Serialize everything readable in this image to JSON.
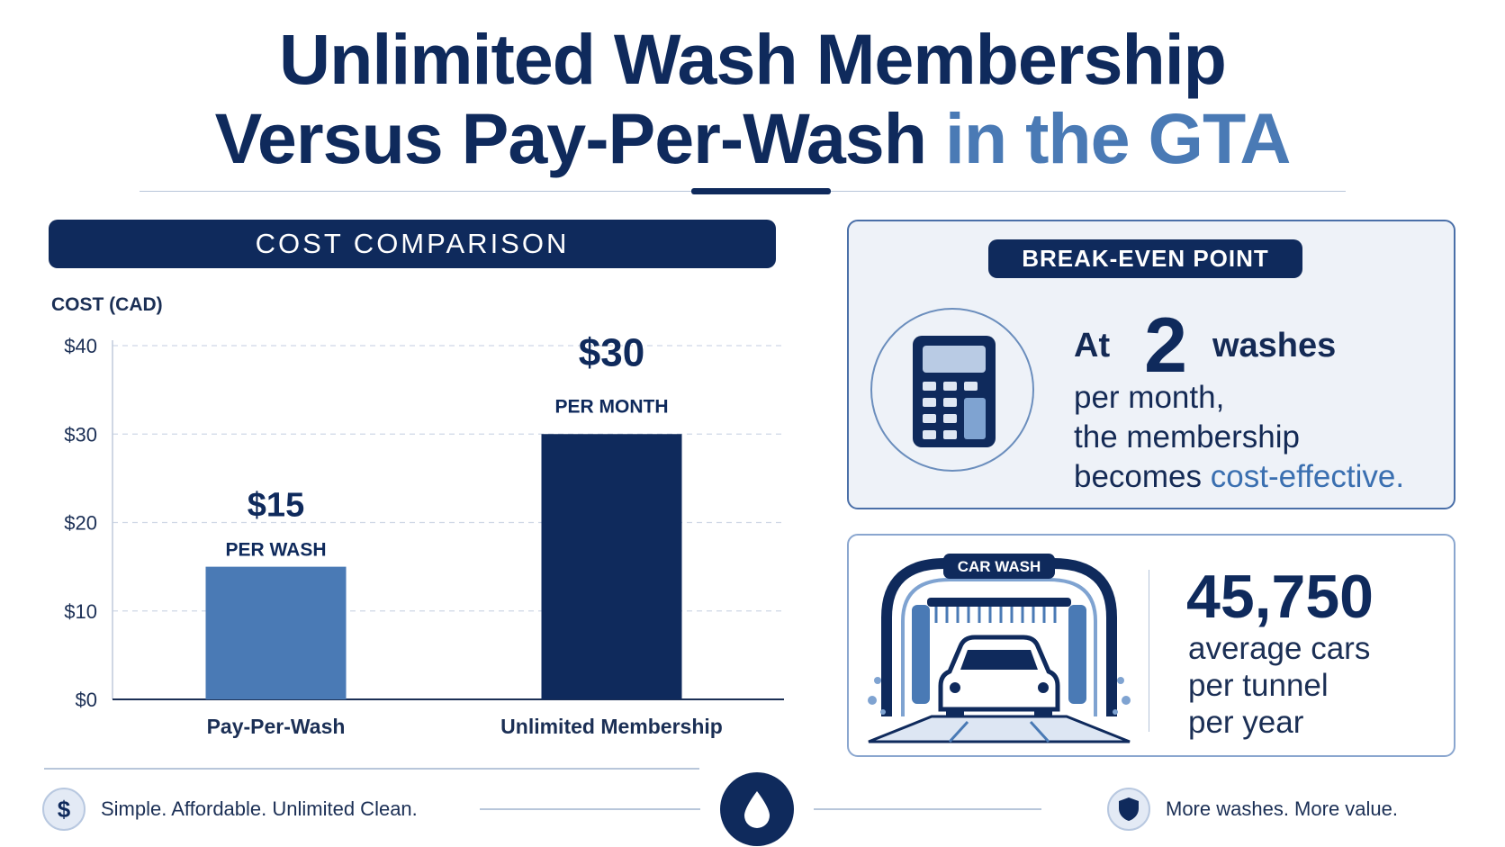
{
  "title": {
    "line1": "Unlimited Wash Membership",
    "line2_main": "Versus Pay-Per-Wash",
    "line2_accent": "in the GTA"
  },
  "cost_panel": {
    "header": "COST COMPARISON"
  },
  "chart_data": {
    "type": "bar",
    "ylabel": "COST (CAD)",
    "ylim": [
      0,
      40
    ],
    "yticks": [
      0,
      10,
      20,
      30,
      40
    ],
    "ytick_labels": [
      "$0",
      "$10",
      "$20",
      "$30",
      "$40"
    ],
    "categories": [
      "Pay-Per-Wash",
      "Unlimited Membership"
    ],
    "values": [
      15,
      30
    ],
    "value_labels": [
      "$15",
      "$30"
    ],
    "unit_labels": [
      "PER WASH",
      "PER MONTH"
    ],
    "colors": [
      "#4a7ab5",
      "#0f2a5c"
    ],
    "grid": true
  },
  "break_even": {
    "pill": "BREAK-EVEN POINT",
    "at": "At",
    "number": "2",
    "washes": "washes",
    "line2": "per month,",
    "line3": "the membership",
    "line4_pre": "becomes",
    "line4_accent": "cost-effective."
  },
  "car_wash": {
    "sign": "CAR WASH",
    "stat": "45,750",
    "stat_label_1": "average cars",
    "stat_label_2": "per tunnel",
    "stat_label_3": "per year"
  },
  "footer": {
    "left_text": "Simple. Affordable. Unlimited Clean.",
    "right_text": "More washes. More value."
  },
  "colors": {
    "navy": "#0f2a5c",
    "accent": "#4a7ab5",
    "light": "#eef2f8"
  }
}
